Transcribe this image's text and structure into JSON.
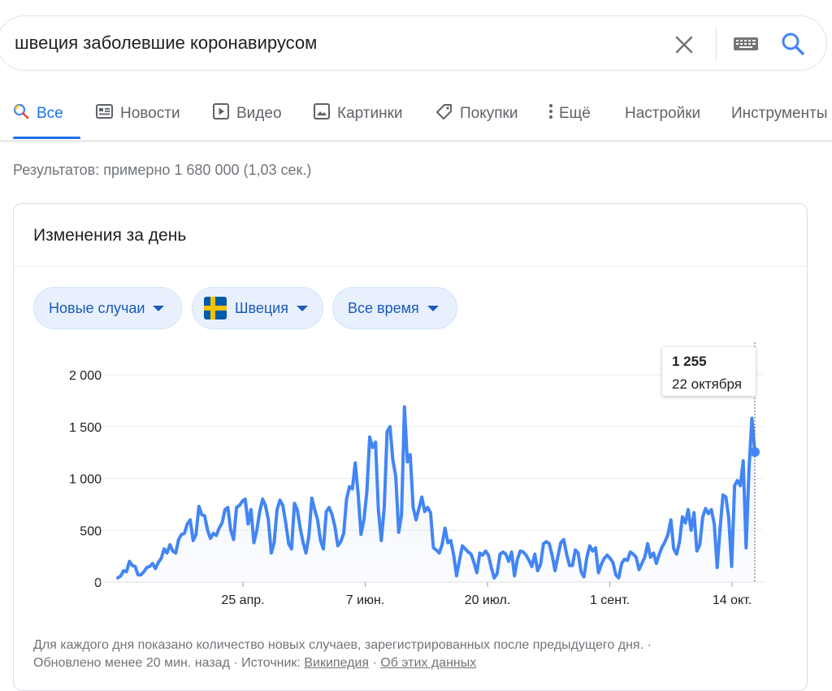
{
  "search": {
    "query": "швеция заболевшие коронавирусом"
  },
  "tabs": [
    {
      "label": "Все"
    },
    {
      "label": "Новости"
    },
    {
      "label": "Видео"
    },
    {
      "label": "Картинки"
    },
    {
      "label": "Покупки"
    },
    {
      "label": "Ещё"
    },
    {
      "label": "Настройки"
    },
    {
      "label": "Инструменты"
    }
  ],
  "results_stats": "Результатов: примерно 1 680 000 (1,03 сек.)",
  "card": {
    "title": "Изменения за день",
    "chips": [
      {
        "label": "Новые случаи"
      },
      {
        "label": "Швеция"
      },
      {
        "label": "Все время"
      }
    ],
    "tooltip": {
      "value": "1 255",
      "date": "22 октября"
    },
    "footnote": {
      "text1": "Для каждого дня показано количество новых случаев, зарегистрированных после предыдущего дня.",
      "sep1": " · ",
      "text2": "Обновлено менее 20 мин. назад",
      "sep2": " · ",
      "source_label": "Источник: ",
      "source_link": "Википедия",
      "sep3": " · ",
      "about_link": "Об этих данных"
    }
  },
  "colors": {
    "accent": "#1a73e8",
    "line": "#4285f4",
    "chip_bg": "#e8f0fe"
  },
  "chart_data": {
    "type": "line",
    "title": "",
    "xlabel": "",
    "ylabel": "",
    "ylim": [
      0,
      2000
    ],
    "yticks": [
      0,
      500,
      1000,
      1500,
      2000
    ],
    "ytick_labels": [
      "0",
      "500",
      "1 000",
      "1 500",
      "2 000"
    ],
    "xticks": [
      {
        "date": "2020-04-25",
        "label": "25 апр."
      },
      {
        "date": "2020-06-07",
        "label": "7 июн."
      },
      {
        "date": "2020-07-20",
        "label": "20 июл."
      },
      {
        "date": "2020-09-01",
        "label": "1 сент."
      },
      {
        "date": "2020-10-14",
        "label": "14 окт."
      }
    ],
    "grid": true,
    "series": [
      {
        "x_start": "2020-03-12",
        "x_end": "2020-10-22",
        "values": [
          40,
          60,
          110,
          100,
          200,
          160,
          150,
          70,
          70,
          100,
          140,
          150,
          180,
          130,
          190,
          230,
          320,
          280,
          360,
          300,
          280,
          410,
          460,
          470,
          560,
          600,
          400,
          460,
          730,
          650,
          640,
          500,
          420,
          470,
          450,
          520,
          570,
          700,
          720,
          500,
          410,
          720,
          740,
          780,
          800,
          560,
          700,
          380,
          500,
          680,
          800,
          740,
          600,
          280,
          380,
          700,
          790,
          740,
          570,
          370,
          320,
          760,
          700,
          520,
          380,
          280,
          450,
          810,
          700,
          600,
          400,
          320,
          680,
          720,
          650,
          530,
          350,
          390,
          470,
          800,
          920,
          900,
          1150,
          850,
          460,
          600,
          870,
          1400,
          1300,
          1350,
          700,
          400,
          720,
          1450,
          1500,
          1180,
          1020,
          480,
          650,
          1690,
          1160,
          1230,
          720,
          600,
          710,
          820,
          680,
          720,
          670,
          330,
          310,
          280,
          360,
          520,
          380,
          400,
          260,
          60,
          210,
          350,
          320,
          290,
          270,
          190,
          90,
          280,
          260,
          300,
          260,
          140,
          40,
          80,
          270,
          290,
          270,
          200,
          290,
          60,
          220,
          300,
          290,
          260,
          210,
          150,
          270,
          110,
          170,
          370,
          390,
          370,
          260,
          110,
          250,
          380,
          410,
          270,
          160,
          160,
          310,
          280,
          100,
          50,
          240,
          350,
          300,
          330,
          90,
          170,
          230,
          260,
          230,
          190,
          70,
          40,
          180,
          220,
          210,
          290,
          270,
          240,
          120,
          180,
          240,
          370,
          240,
          280,
          180,
          270,
          340,
          390,
          460,
          600,
          320,
          270,
          390,
          630,
          570,
          700,
          500,
          670,
          300,
          360,
          630,
          710,
          660,
          700,
          560,
          140,
          510,
          840,
          820,
          620,
          150,
          930,
          980,
          930,
          1170,
          330,
          1100,
          1580,
          1255
        ]
      }
    ],
    "tooltip_point": {
      "date": "2020-10-22",
      "value": 1255
    }
  }
}
